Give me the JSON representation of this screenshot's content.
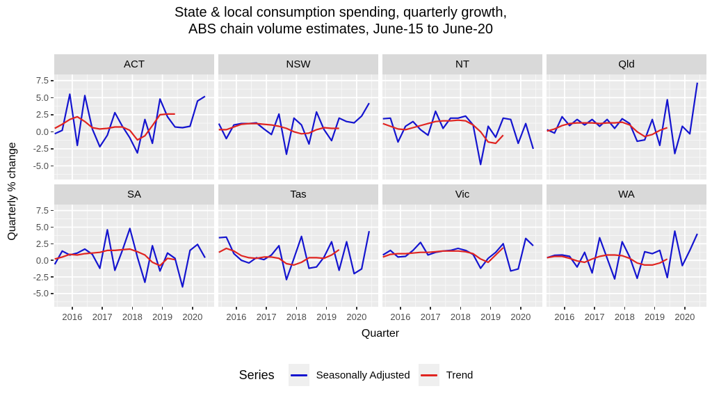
{
  "title": {
    "line1": "State & local consumption spending, quarterly growth,",
    "line2": "ABS chain volume estimates, June-15 to June-20"
  },
  "axes": {
    "x_label": "Quarter",
    "y_label": "Quarterly % change",
    "y_tick_labels": [
      "7.5",
      "5.0",
      "2.5",
      "0.0",
      "-2.5",
      "-5.0"
    ],
    "x_tick_labels": [
      "2016",
      "2017",
      "2018",
      "2019",
      "2020"
    ]
  },
  "legend": {
    "title": "Series",
    "items": [
      {
        "label": "Seasonally Adjusted",
        "color": "#1414CF"
      },
      {
        "label": "Trend",
        "color": "#E02420"
      }
    ]
  },
  "colors": {
    "panel_bg": "#EBEBEB",
    "strip_bg": "#D9D9D9",
    "grid_major": "#FFFFFF",
    "grid_minor": "#F8F8F8",
    "axis_text": "#4D4D4D",
    "tick_mark": "#333333",
    "seasonally_adjusted": "#1414CF",
    "trend": "#E02420"
  },
  "chart_data": {
    "type": "line",
    "title": "State & local consumption spending, quarterly growth, ABS chain volume estimates, June-15 to June-20",
    "xlabel": "Quarter",
    "ylabel": "Quarterly % change",
    "legend_title": "Series",
    "series_names": [
      "Seasonally Adjusted",
      "Trend"
    ],
    "x_quarters": [
      "Jun-15",
      "Sep-15",
      "Dec-15",
      "Mar-16",
      "Jun-16",
      "Sep-16",
      "Dec-16",
      "Mar-17",
      "Jun-17",
      "Sep-17",
      "Dec-17",
      "Mar-18",
      "Jun-18",
      "Sep-18",
      "Dec-18",
      "Mar-19",
      "Jun-19",
      "Sep-19",
      "Dec-19",
      "Mar-20",
      "Jun-20"
    ],
    "y_ticks": [
      7.5,
      5.0,
      2.5,
      0.0,
      -2.5,
      -5.0
    ],
    "x_ticks": [
      2016,
      2017,
      2018,
      2019,
      2020
    ],
    "ylim": [
      -7.0,
      8.4
    ],
    "xlim": [
      2015.4,
      2020.72
    ],
    "x_start": 2015.417,
    "x_step": 0.25,
    "grid": true,
    "legend_position": "bottom",
    "facets": [
      {
        "name": "ACT",
        "seasonally_adjusted": [
          -0.3,
          0.2,
          5.5,
          -2.0,
          5.3,
          0.4,
          -2.2,
          -0.5,
          2.8,
          0.8,
          -0.9,
          -3.1,
          1.8,
          -1.7,
          4.8,
          2.2,
          0.7,
          0.6,
          0.8,
          4.5,
          5.2
        ],
        "trend": [
          0.5,
          1.1,
          1.8,
          2.2,
          1.5,
          0.6,
          0.4,
          0.5,
          0.7,
          0.7,
          0.2,
          -1.2,
          -0.6,
          0.9,
          2.5,
          2.6,
          2.6
        ]
      },
      {
        "name": "NSW",
        "seasonally_adjusted": [
          1.2,
          -1.0,
          1.0,
          1.2,
          1.2,
          1.3,
          0.4,
          -0.4,
          2.6,
          -3.3,
          2.0,
          1.0,
          -1.8,
          2.9,
          0.3,
          -1.3,
          2.0,
          1.5,
          1.3,
          2.3,
          4.2
        ],
        "trend": [
          0.3,
          0.3,
          0.7,
          1.1,
          1.2,
          1.2,
          1.1,
          1.0,
          0.8,
          0.5,
          0.0,
          -0.3,
          -0.2,
          0.3,
          0.6,
          0.5,
          0.5
        ]
      },
      {
        "name": "NT",
        "seasonally_adjusted": [
          1.9,
          2.0,
          -1.5,
          0.8,
          1.5,
          0.3,
          -0.5,
          3.0,
          0.5,
          2.0,
          2.0,
          2.3,
          1.0,
          -4.8,
          0.8,
          -0.8,
          2.0,
          1.8,
          -1.7,
          1.2,
          -2.5
        ],
        "trend": [
          1.2,
          0.8,
          0.4,
          0.3,
          0.6,
          0.9,
          1.2,
          1.5,
          1.6,
          1.6,
          1.7,
          1.6,
          1.0,
          0.0,
          -1.5,
          -1.7,
          -0.5
        ]
      },
      {
        "name": "Qld",
        "seasonally_adjusted": [
          0.3,
          -0.2,
          2.2,
          0.9,
          1.8,
          1.0,
          1.8,
          0.8,
          1.8,
          0.5,
          1.9,
          1.2,
          -1.4,
          -1.2,
          1.8,
          -2.0,
          4.7,
          -3.2,
          0.8,
          -0.3,
          7.2
        ],
        "trend": [
          0.1,
          0.4,
          0.9,
          1.2,
          1.3,
          1.3,
          1.3,
          1.2,
          1.3,
          1.3,
          1.4,
          1.0,
          0.0,
          -0.7,
          -0.4,
          0.2,
          0.6
        ]
      },
      {
        "name": "SA",
        "seasonally_adjusted": [
          -0.6,
          1.4,
          0.8,
          1.1,
          1.7,
          0.9,
          -1.2,
          4.6,
          -1.5,
          1.5,
          4.8,
          0.5,
          -3.3,
          2.2,
          -1.6,
          1.1,
          0.3,
          -4.0,
          1.5,
          2.4,
          0.4
        ],
        "trend": [
          0.2,
          0.5,
          0.9,
          0.8,
          1.0,
          1.1,
          1.2,
          1.5,
          1.5,
          1.6,
          1.7,
          1.3,
          0.8,
          -0.3,
          -0.8,
          0.3,
          0.1
        ]
      },
      {
        "name": "Tas",
        "seasonally_adjusted": [
          3.4,
          3.5,
          1.0,
          0.0,
          -0.4,
          0.4,
          0.1,
          0.8,
          2.2,
          -2.9,
          0.3,
          3.6,
          -1.2,
          -1.0,
          0.5,
          2.8,
          -1.5,
          2.8,
          -2.0,
          -1.3,
          4.4
        ],
        "trend": [
          1.2,
          1.8,
          1.4,
          0.7,
          0.4,
          0.3,
          0.5,
          0.5,
          0.3,
          -0.5,
          -0.7,
          -0.3,
          0.4,
          0.4,
          0.3,
          0.8,
          1.6
        ]
      },
      {
        "name": "Vic",
        "seasonally_adjusted": [
          0.8,
          1.5,
          0.5,
          0.6,
          1.5,
          2.7,
          0.8,
          1.2,
          1.4,
          1.5,
          1.8,
          1.5,
          0.9,
          -1.2,
          0.3,
          1.2,
          2.5,
          -1.6,
          -1.3,
          3.3,
          2.2
        ],
        "trend": [
          0.5,
          0.9,
          1.0,
          1.0,
          1.1,
          1.2,
          1.2,
          1.3,
          1.4,
          1.4,
          1.4,
          1.3,
          1.0,
          0.2,
          -0.3,
          0.8,
          1.9
        ]
      },
      {
        "name": "WA",
        "seasonally_adjusted": [
          0.4,
          0.75,
          0.8,
          0.6,
          -1.0,
          1.2,
          -1.9,
          3.4,
          0.3,
          -2.8,
          2.8,
          0.5,
          -2.7,
          1.3,
          1.0,
          1.5,
          -2.6,
          4.4,
          -0.8,
          1.5,
          4.0
        ],
        "trend": [
          0.4,
          0.6,
          0.6,
          0.3,
          -0.1,
          -0.3,
          0.2,
          0.6,
          0.8,
          0.8,
          0.7,
          0.3,
          -0.4,
          -0.7,
          -0.7,
          -0.4,
          0.2
        ]
      }
    ]
  }
}
